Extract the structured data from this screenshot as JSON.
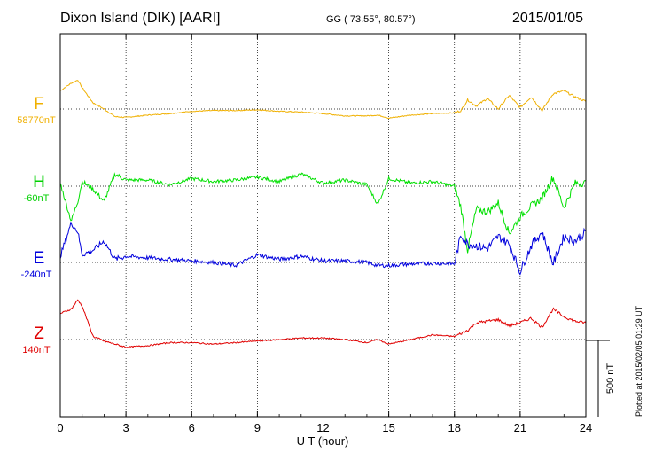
{
  "header": {
    "station": "Dixon Island (DIK)  [AARI]",
    "coords": "GG ( 73.55°,  80.57°)",
    "date": "2015/01/05"
  },
  "plotted": "Plotted at 2015/02/05 01:29 UT",
  "scale_label": "500 nT",
  "colors": {
    "F": "#f0b000",
    "H": "#00e000",
    "E": "#0000dd",
    "Z": "#e00000"
  },
  "chart_data": {
    "type": "line",
    "xlabel": "U T (hour)",
    "xlim": [
      0,
      24
    ],
    "x_ticks": [
      0,
      3,
      6,
      9,
      12,
      15,
      18,
      21,
      24
    ],
    "x_tick_labels": [
      "0",
      "3",
      "6",
      "9",
      "12",
      "15",
      "18",
      "21",
      "24"
    ],
    "grid": true,
    "y_unit": "nT",
    "scale_bar_nT": 500,
    "x": [
      0,
      0.5,
      0.8,
      1,
      1.5,
      2,
      2.5,
      3,
      4,
      5,
      6,
      7,
      8,
      9,
      10,
      11,
      12,
      13,
      14,
      14.5,
      15,
      16,
      17,
      18,
      18.3,
      18.6,
      19,
      19.5,
      20,
      20.5,
      21,
      21.5,
      22,
      22.5,
      23,
      23.5,
      24
    ],
    "series": [
      {
        "name": "F",
        "baseline_label": "58770nT",
        "values": [
          120,
          170,
          190,
          140,
          40,
          0,
          -50,
          -55,
          -40,
          -30,
          -15,
          -10,
          -10,
          -5,
          -15,
          -20,
          -30,
          -45,
          -45,
          -40,
          -60,
          -40,
          -30,
          -25,
          -10,
          60,
          20,
          70,
          0,
          90,
          10,
          80,
          -10,
          100,
          120,
          80,
          50
        ]
      },
      {
        "name": "H",
        "baseline_label": "-60nT",
        "values": [
          20,
          -230,
          -100,
          30,
          -20,
          -100,
          80,
          40,
          40,
          10,
          50,
          30,
          40,
          60,
          30,
          80,
          20,
          40,
          10,
          -120,
          50,
          20,
          30,
          0,
          -140,
          -420,
          -150,
          -170,
          -110,
          -310,
          -200,
          -130,
          -80,
          60,
          -140,
          20,
          20
        ]
      },
      {
        "name": "E",
        "baseline_label": "-240nT",
        "values": [
          40,
          260,
          200,
          50,
          80,
          140,
          20,
          40,
          30,
          20,
          10,
          0,
          -20,
          50,
          20,
          40,
          10,
          10,
          0,
          -20,
          -20,
          -10,
          -5,
          -10,
          180,
          120,
          110,
          90,
          170,
          120,
          -60,
          110,
          200,
          -10,
          170,
          140,
          200
        ]
      },
      {
        "name": "Z",
        "baseline_label": "140nT",
        "values": [
          170,
          200,
          260,
          220,
          20,
          -10,
          -30,
          -50,
          -40,
          -20,
          -20,
          -30,
          -20,
          -10,
          0,
          10,
          10,
          0,
          -20,
          0,
          -30,
          0,
          30,
          20,
          40,
          60,
          110,
          120,
          130,
          90,
          110,
          140,
          80,
          200,
          150,
          120,
          110
        ]
      }
    ]
  }
}
